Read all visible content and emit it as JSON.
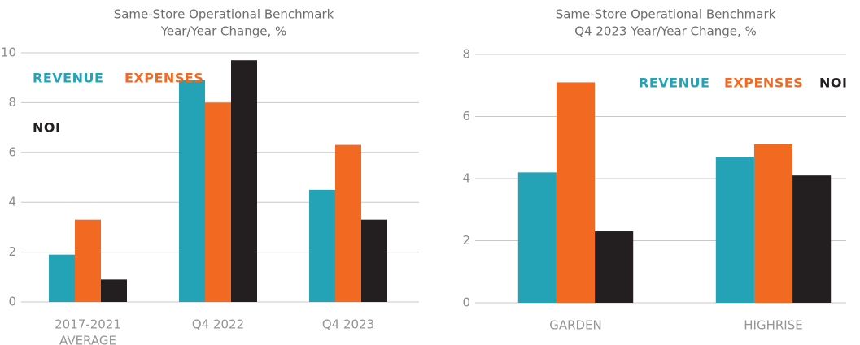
{
  "chart_data": [
    {
      "type": "bar",
      "title": [
        "Same-Store Operational Benchmark",
        "Year/Year Change, %"
      ],
      "categories": [
        [
          "2017-2021",
          "AVERAGE"
        ],
        [
          "Q4 2022"
        ],
        [
          "Q4 2023"
        ]
      ],
      "series": [
        {
          "name": "REVENUE",
          "color": "#23a3b5",
          "values": [
            1.9,
            8.9,
            4.5
          ]
        },
        {
          "name": "EXPENSES",
          "color": "#f26a22",
          "values": [
            3.3,
            8.0,
            6.3
          ]
        },
        {
          "name": "NOI",
          "color": "#231f20",
          "values": [
            0.9,
            9.7,
            3.3
          ]
        }
      ],
      "ylim": [
        0,
        10
      ],
      "yticks": [
        0,
        2,
        4,
        6,
        8,
        10
      ],
      "grid": true
    },
    {
      "type": "bar",
      "title": [
        "Same-Store Operational Benchmark",
        "Q4 2023 Year/Year Change, %"
      ],
      "categories": [
        [
          "GARDEN"
        ],
        [
          "HIGHRISE"
        ]
      ],
      "series": [
        {
          "name": "REVENUE",
          "color": "#23a3b5",
          "values": [
            4.2,
            4.7
          ]
        },
        {
          "name": "EXPENSES",
          "color": "#f26a22",
          "values": [
            7.1,
            5.1
          ]
        },
        {
          "name": "NOI",
          "color": "#231f20",
          "values": [
            2.3,
            4.1
          ]
        }
      ],
      "ylim": [
        0,
        8
      ],
      "yticks": [
        0,
        2,
        4,
        6,
        8
      ],
      "grid": true
    }
  ]
}
